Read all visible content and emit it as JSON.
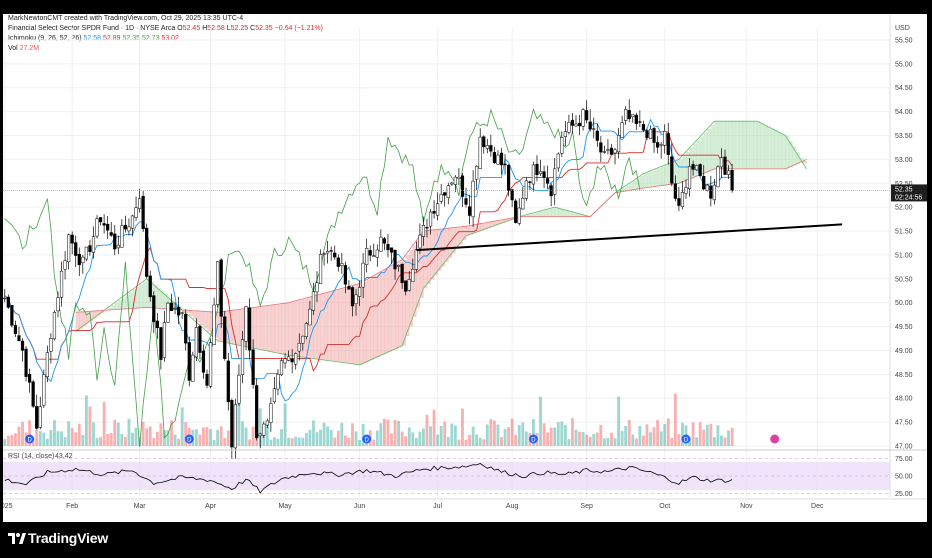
{
  "header": {
    "created_by": "MarkNewtonCMT created with TradingView.com, Oct 29, 2025 13:35 UTC-4",
    "symbol_line": "Financial Select Sector SPDR Fund · 1D · NYSE Arca",
    "ohlc": {
      "o_label": "O",
      "o": "52.45",
      "h_label": "H",
      "h": "52.58",
      "l_label": "L",
      "l": "52.25",
      "c_label": "C",
      "c": "52.35",
      "change": "−0.64 (−1.21%)"
    },
    "ichimoku_label": "Ichimoku (9, 26, 52, 26)",
    "ichimoku_values": [
      "52.58",
      "52.89",
      "52.35",
      "52.73",
      "53.02"
    ],
    "vol_label": "Vol",
    "vol_value": "27.2M",
    "rsi_label": "RSI (14, close)",
    "rsi_value": "43.42"
  },
  "colors": {
    "up": "#26a69a",
    "down": "#ef5350",
    "candle": "#000000",
    "tenkan": "#2196f3",
    "kijun": "#d32f2f",
    "chikou": "#43a047",
    "cloud_bull": "#a5d6a7",
    "cloud_bear": "#ef9a9a",
    "span_a": "#66bb6a",
    "span_b": "#e57373",
    "rsi": "#000000",
    "rsi_band": "#e8d8f8",
    "trend": "#000000"
  },
  "footer": {
    "brand": "TradingView"
  },
  "chart_data": {
    "type": "candlestick",
    "currency": "USD",
    "price_axis": {
      "ticks": [
        "55.50",
        "55.00",
        "54.50",
        "54.00",
        "53.50",
        "53.00",
        "52.50",
        "52.00",
        "51.50",
        "51.00",
        "50.50",
        "50.00",
        "49.50",
        "49.00",
        "48.50",
        "48.00",
        "47.50",
        "47.00"
      ],
      "range": [
        47.0,
        55.75
      ]
    },
    "last_price": "52.35",
    "countdown": "02:24:56",
    "x_axis": {
      "labels": [
        "2025",
        "Feb",
        "Mar",
        "Apr",
        "May",
        "Jun",
        "Jul",
        "Aug",
        "Sep",
        "Oct",
        "Nov",
        "Dec"
      ],
      "label_bars": [
        0,
        19,
        38,
        58,
        79,
        100,
        122,
        143,
        164,
        186,
        209,
        229
      ],
      "total_bars": 250,
      "data_bars": 206
    },
    "anchors": [
      [
        0,
        50.1
      ],
      [
        5,
        49.0
      ],
      [
        9,
        47.4
      ],
      [
        13,
        49.4
      ],
      [
        18,
        51.4
      ],
      [
        22,
        50.8
      ],
      [
        27,
        51.8
      ],
      [
        31,
        51.2
      ],
      [
        36,
        51.8
      ],
      [
        38,
        52.3
      ],
      [
        40,
        50.6
      ],
      [
        44,
        48.9
      ],
      [
        46,
        50.0
      ],
      [
        50,
        49.7
      ],
      [
        52,
        48.5
      ],
      [
        54,
        49.5
      ],
      [
        57,
        48.3
      ],
      [
        60,
        50.7
      ],
      [
        64,
        47.0
      ],
      [
        68,
        50.0
      ],
      [
        71,
        47.3
      ],
      [
        74,
        47.4
      ],
      [
        78,
        48.7
      ],
      [
        82,
        49.0
      ],
      [
        86,
        49.8
      ],
      [
        90,
        51.2
      ],
      [
        94,
        50.9
      ],
      [
        98,
        49.9
      ],
      [
        102,
        51.0
      ],
      [
        106,
        51.3
      ],
      [
        110,
        50.8
      ],
      [
        113,
        50.4
      ],
      [
        116,
        51.1
      ],
      [
        120,
        51.9
      ],
      [
        124,
        52.4
      ],
      [
        127,
        52.7
      ],
      [
        131,
        52.0
      ],
      [
        134,
        53.5
      ],
      [
        138,
        53.1
      ],
      [
        141,
        52.8
      ],
      [
        144,
        51.6
      ],
      [
        147,
        52.6
      ],
      [
        151,
        52.9
      ],
      [
        154,
        52.4
      ],
      [
        157,
        53.5
      ],
      [
        160,
        53.7
      ],
      [
        163,
        53.9
      ],
      [
        166,
        53.5
      ],
      [
        169,
        53.0
      ],
      [
        172,
        53.2
      ],
      [
        175,
        53.9
      ],
      [
        178,
        53.7
      ],
      [
        181,
        53.6
      ],
      [
        184,
        53.2
      ],
      [
        186,
        53.5
      ],
      [
        188,
        52.5
      ],
      [
        190,
        51.9
      ],
      [
        193,
        52.9
      ],
      [
        196,
        52.6
      ],
      [
        199,
        52.3
      ],
      [
        202,
        53.1
      ],
      [
        205,
        52.35
      ]
    ],
    "cloud_a": [
      [
        20,
        49.4
      ],
      [
        40,
        50.5
      ],
      [
        60,
        49.2
      ],
      [
        80,
        48.9
      ],
      [
        100,
        48.7
      ],
      [
        112,
        49.1
      ],
      [
        118,
        50.3
      ],
      [
        130,
        51.4
      ],
      [
        145,
        51.8
      ],
      [
        155,
        52.0
      ],
      [
        165,
        51.8
      ],
      [
        172,
        52.3
      ],
      [
        180,
        52.7
      ],
      [
        190,
        53.0
      ],
      [
        200,
        53.8
      ],
      [
        212,
        53.8
      ],
      [
        220,
        53.5
      ],
      [
        226,
        52.8
      ]
    ],
    "cloud_b": [
      [
        20,
        49.8
      ],
      [
        40,
        49.9
      ],
      [
        60,
        49.8
      ],
      [
        80,
        50.0
      ],
      [
        100,
        50.4
      ],
      [
        112,
        50.9
      ],
      [
        118,
        51.5
      ],
      [
        130,
        51.6
      ],
      [
        145,
        51.8
      ],
      [
        155,
        51.8
      ],
      [
        165,
        51.8
      ],
      [
        172,
        52.3
      ],
      [
        180,
        52.4
      ],
      [
        190,
        52.5
      ],
      [
        200,
        52.8
      ],
      [
        212,
        52.8
      ],
      [
        220,
        52.8
      ],
      [
        226,
        53.0
      ]
    ],
    "trendline": [
      [
        116,
        51.1
      ],
      [
        236,
        51.64
      ]
    ],
    "rsi": {
      "levels": [
        "75.00",
        "50.00",
        "25.00"
      ],
      "band": [
        30,
        70
      ],
      "anchors": [
        [
          0,
          45
        ],
        [
          6,
          38
        ],
        [
          12,
          55
        ],
        [
          20,
          60
        ],
        [
          28,
          52
        ],
        [
          36,
          58
        ],
        [
          42,
          40
        ],
        [
          50,
          48
        ],
        [
          58,
          44
        ],
        [
          64,
          32
        ],
        [
          68,
          45
        ],
        [
          72,
          28
        ],
        [
          78,
          46
        ],
        [
          86,
          55
        ],
        [
          94,
          52
        ],
        [
          102,
          58
        ],
        [
          110,
          50
        ],
        [
          118,
          60
        ],
        [
          124,
          62
        ],
        [
          130,
          64
        ],
        [
          134,
          68
        ],
        [
          140,
          56
        ],
        [
          146,
          50
        ],
        [
          152,
          55
        ],
        [
          158,
          52
        ],
        [
          164,
          58
        ],
        [
          170,
          56
        ],
        [
          176,
          62
        ],
        [
          182,
          55
        ],
        [
          186,
          48
        ],
        [
          190,
          40
        ],
        [
          194,
          48
        ],
        [
          198,
          44
        ],
        [
          205,
          43.4
        ]
      ]
    }
  }
}
